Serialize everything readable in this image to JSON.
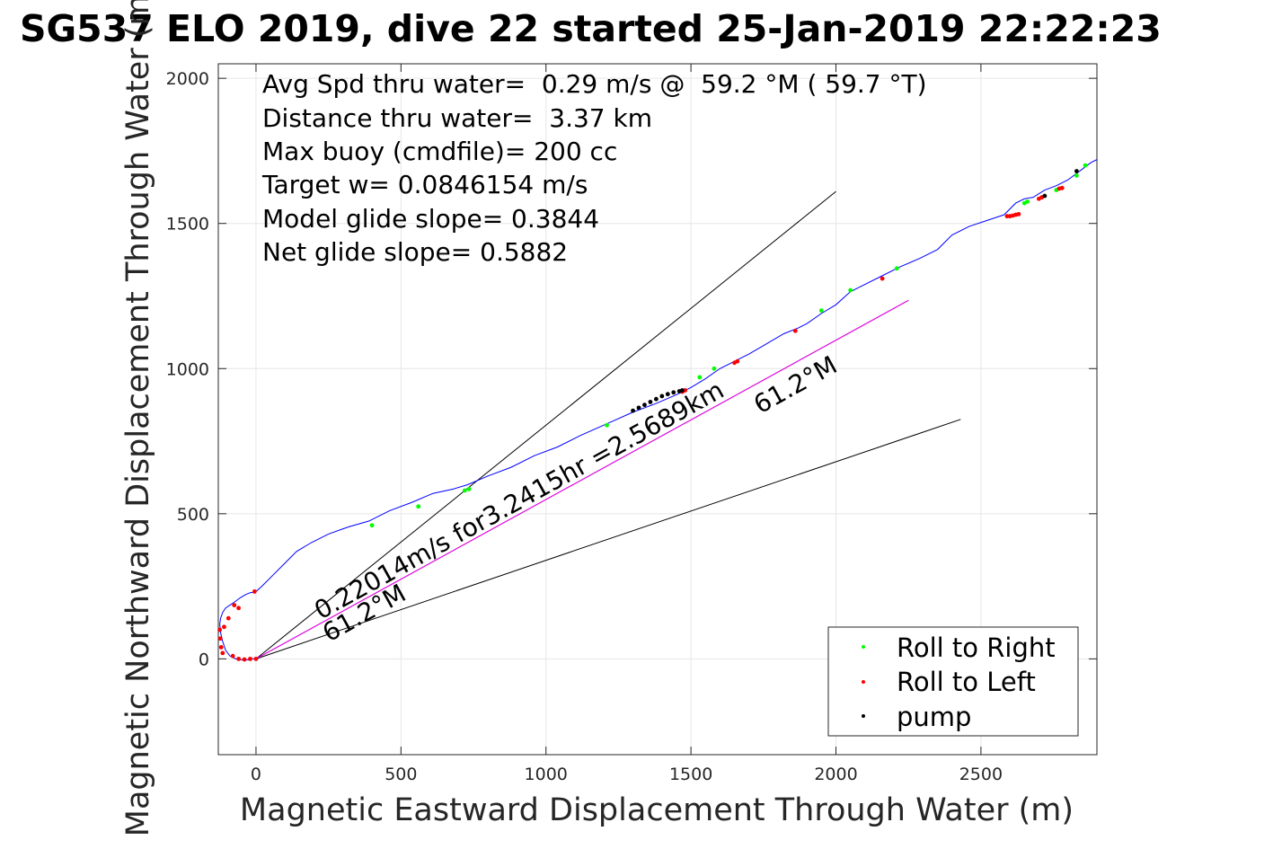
{
  "chart_data": {
    "type": "line",
    "title": "SG537 ELO 2019, dive 22 started 25-Jan-2019 22:22:23",
    "xlabel": "Magnetic Eastward Displacement Through Water (m)",
    "ylabel": "Magnetic Northward Displacement Through Water (m)",
    "xlim": [
      -130,
      2900
    ],
    "ylim": [
      -330,
      2050
    ],
    "xticks": [
      0,
      500,
      1000,
      1500,
      2000,
      2500
    ],
    "yticks": [
      0,
      500,
      1000,
      1500,
      2000
    ],
    "grid": true,
    "legend_position": "bottom-right",
    "info_text": [
      "Avg Spd thru water=  0.29 m/s @  59.2 °M ( 59.7 °T)",
      "Distance thru water=  3.37 km",
      "Max buoy (cmdfile)= 200 cc",
      "Target w= 0.0846154 m/s",
      "Model glide slope= 0.3844",
      "Net glide slope= 0.5882"
    ],
    "annotations": {
      "current_label": "0.22014m/s for3.2415hr =2.5689km",
      "heading_label_start": "61.2°M",
      "heading_label_end": "61.2°M"
    },
    "track": {
      "name": "track",
      "color": "#0000ff",
      "x": [
        0,
        -10,
        -25,
        -50,
        -70,
        -90,
        -105,
        -115,
        -122,
        -125,
        -122,
        -115,
        -105,
        -90,
        -75,
        -55,
        -35,
        -20,
        -5,
        0,
        20,
        60,
        100,
        140,
        190,
        250,
        320,
        390,
        460,
        540,
        610,
        680,
        730,
        800,
        880,
        960,
        1040,
        1120,
        1210,
        1300,
        1380,
        1450,
        1500,
        1550,
        1600,
        1650,
        1700,
        1760,
        1820,
        1870,
        1900,
        1950,
        2000,
        2050,
        2100,
        2160,
        2220,
        2290,
        2350,
        2400,
        2460,
        2520,
        2580,
        2620,
        2650,
        2680,
        2720,
        2760,
        2800,
        2840,
        2880,
        2900
      ],
      "y": [
        0,
        0,
        -3,
        -3,
        0,
        10,
        30,
        60,
        90,
        120,
        140,
        160,
        175,
        185,
        195,
        210,
        222,
        228,
        230,
        232,
        250,
        290,
        330,
        370,
        400,
        430,
        455,
        475,
        510,
        540,
        570,
        585,
        600,
        630,
        660,
        700,
        730,
        770,
        810,
        850,
        880,
        910,
        935,
        965,
        1000,
        1025,
        1050,
        1085,
        1120,
        1140,
        1155,
        1190,
        1220,
        1265,
        1290,
        1320,
        1350,
        1380,
        1410,
        1460,
        1490,
        1510,
        1530,
        1570,
        1585,
        1590,
        1615,
        1630,
        1650,
        1680,
        1710,
        1720
      ]
    },
    "lines": [
      {
        "name": "heading_line_upper",
        "color": "#000000",
        "x": [
          0,
          2000
        ],
        "y": [
          0,
          1610
        ]
      },
      {
        "name": "heading_line_mid",
        "color": "#000000",
        "x": [
          0,
          2250
        ],
        "y": [
          0,
          1235
        ]
      },
      {
        "name": "heading_line_lower",
        "color": "#000000",
        "x": [
          0,
          2430
        ],
        "y": [
          0,
          825
        ]
      },
      {
        "name": "current_line",
        "color": "#ff00ff",
        "x": [
          0,
          2250
        ],
        "y": [
          0,
          1235
        ]
      }
    ],
    "series": [
      {
        "name": "Roll to Right",
        "color": "#00ff00",
        "marker": "dot",
        "x": [
          400,
          560,
          720,
          735,
          1210,
          1530,
          1580,
          1950,
          2050,
          2210,
          2650,
          2660,
          2760,
          2830,
          2860
        ],
        "y": [
          460,
          525,
          580,
          585,
          805,
          970,
          1000,
          1200,
          1270,
          1345,
          1570,
          1575,
          1615,
          1665,
          1700
        ]
      },
      {
        "name": "Roll to Left",
        "color": "#ff0000",
        "marker": "dot",
        "x": [
          -125,
          -123,
          -120,
          -115,
          -110,
          -95,
          -80,
          -60,
          -40,
          -20,
          0,
          -5,
          -60,
          -75,
          1470,
          1480,
          1650,
          1660,
          1860,
          2160,
          2590,
          2600,
          2610,
          2620,
          2630,
          2700,
          2710,
          2770,
          2780
        ],
        "y": [
          100,
          70,
          40,
          20,
          110,
          140,
          10,
          0,
          -2,
          0,
          0,
          232,
          175,
          185,
          920,
          925,
          1020,
          1025,
          1130,
          1310,
          1525,
          1525,
          1527,
          1530,
          1532,
          1585,
          1590,
          1620,
          1622
        ]
      },
      {
        "name": "pump",
        "color": "#000000",
        "marker": "dot",
        "x": [
          1300,
          1320,
          1340,
          1360,
          1380,
          1400,
          1420,
          1440,
          1460,
          1470,
          2830,
          2720
        ],
        "y": [
          855,
          865,
          875,
          885,
          895,
          905,
          912,
          918,
          922,
          925,
          1680,
          1595
        ]
      }
    ]
  }
}
